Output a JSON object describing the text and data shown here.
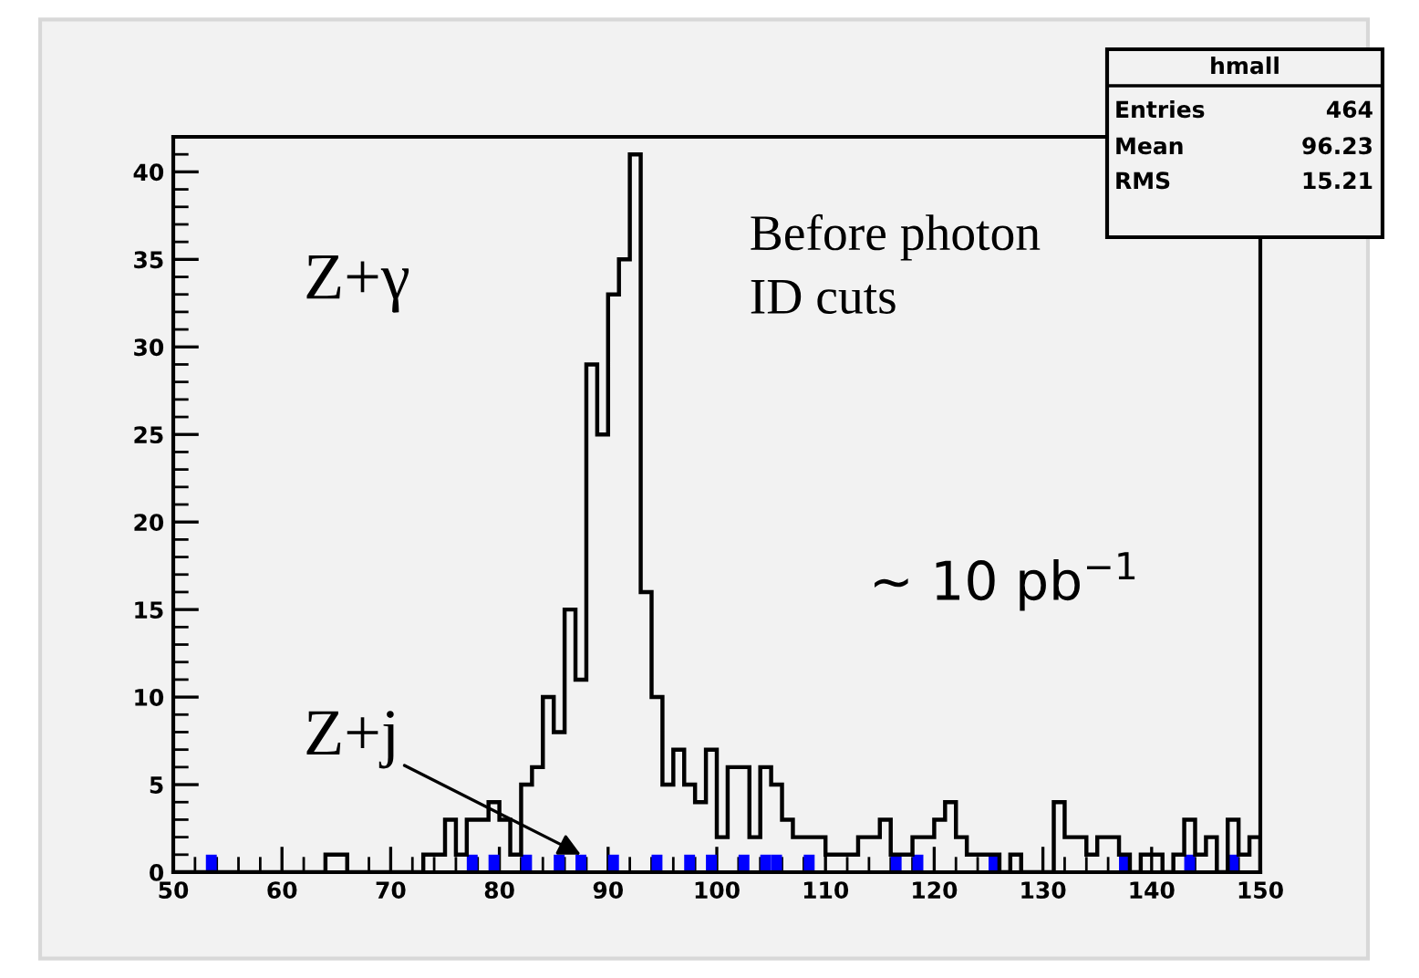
{
  "chart_data": {
    "type": "histogram",
    "bins": [
      50,
      51,
      52,
      53,
      54,
      55,
      56,
      57,
      58,
      59,
      60,
      61,
      62,
      63,
      64,
      65,
      66,
      67,
      68,
      69,
      70,
      71,
      72,
      73,
      74,
      75,
      76,
      77,
      78,
      79,
      80,
      81,
      82,
      83,
      84,
      85,
      86,
      87,
      88,
      89,
      90,
      91,
      92,
      93,
      94,
      95,
      96,
      97,
      98,
      99,
      100,
      101,
      102,
      103,
      104,
      105,
      106,
      107,
      108,
      109,
      110,
      111,
      112,
      113,
      114,
      115,
      116,
      117,
      118,
      119,
      120,
      121,
      122,
      123,
      124,
      125,
      126,
      127,
      128,
      129,
      130,
      131,
      132,
      133,
      134,
      135,
      136,
      137,
      138,
      139,
      140,
      141,
      142,
      143,
      144,
      145,
      146,
      147,
      148,
      149,
      150
    ],
    "series": [
      {
        "color": "#000000",
        "values": [
          0,
          0,
          0,
          0,
          0,
          0,
          0,
          0,
          0,
          0,
          0,
          0,
          0,
          0,
          1,
          1,
          0,
          0,
          0,
          0,
          0,
          0,
          0,
          1,
          1,
          3,
          1,
          3,
          3,
          4,
          3,
          1,
          5,
          6,
          10,
          8,
          15,
          11,
          29,
          25,
          33,
          35,
          41,
          16,
          10,
          5,
          7,
          5,
          4,
          7,
          2,
          6,
          6,
          2,
          6,
          5,
          3,
          2,
          2,
          2,
          1,
          1,
          1,
          2,
          2,
          3,
          1,
          1,
          2,
          2,
          3,
          4,
          2,
          1,
          1,
          1,
          0,
          1,
          0,
          0,
          0,
          4,
          2,
          2,
          1,
          2,
          2,
          1,
          0,
          1,
          1,
          0,
          1,
          3,
          1,
          2,
          0,
          3,
          1,
          2
        ]
      },
      {
        "color": "#0000ff",
        "values": [
          null,
          null,
          null,
          1,
          null,
          null,
          null,
          null,
          null,
          null,
          null,
          null,
          null,
          null,
          null,
          null,
          null,
          null,
          null,
          null,
          null,
          null,
          null,
          null,
          null,
          null,
          null,
          1,
          null,
          1,
          null,
          null,
          1,
          null,
          null,
          1,
          null,
          1,
          null,
          null,
          1,
          null,
          null,
          null,
          1,
          null,
          null,
          1,
          null,
          1,
          null,
          null,
          1,
          null,
          1,
          1,
          null,
          null,
          1,
          null,
          null,
          null,
          null,
          null,
          null,
          null,
          1,
          null,
          1,
          null,
          null,
          null,
          null,
          null,
          null,
          1,
          null,
          null,
          null,
          null,
          null,
          null,
          null,
          null,
          null,
          null,
          null,
          1,
          null,
          null,
          null,
          null,
          null,
          1,
          null,
          null,
          null,
          1,
          null,
          null
        ]
      }
    ],
    "xlim": [
      50,
      150
    ],
    "xticks": [
      50,
      60,
      70,
      80,
      90,
      100,
      110,
      120,
      130,
      140,
      150
    ],
    "ylim": [
      0,
      42
    ],
    "yticks": [
      0,
      5,
      10,
      15,
      20,
      25,
      30,
      35,
      40
    ],
    "grid": false,
    "legend": false,
    "annotations": [
      "Z+γ",
      "Before photon\nID cuts",
      "~ 10 pb$^{−1}$",
      {
        "text": "Z+j",
        "x": 87.5,
        "y": 1
      },
      "hmall",
      "Entries",
      "464",
      "Mean",
      "96.23",
      "RMS",
      "15.21"
    ]
  }
}
